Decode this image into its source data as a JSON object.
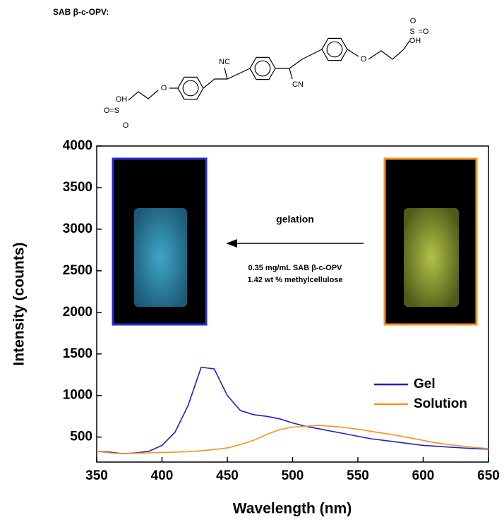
{
  "structure": {
    "label": "SAB β-c-OPV:",
    "atoms": [
      "NC",
      "CN",
      "O",
      "O",
      "OH",
      "O=S",
      "O",
      "O",
      "=O",
      "S",
      "OH"
    ]
  },
  "chart_data": {
    "type": "line",
    "annotations": [
      "gelation",
      "0.35 mg/mL SAB β-c-OPV",
      "1.42 wt % methylcellulose"
    ],
    "x_label": "Wavelength (nm)",
    "y_label": "Intensity (counts)",
    "x": [
      350,
      360,
      370,
      380,
      390,
      400,
      410,
      420,
      430,
      440,
      450,
      460,
      470,
      480,
      490,
      500,
      510,
      520,
      530,
      540,
      550,
      560,
      570,
      580,
      590,
      600,
      610,
      620,
      630,
      640,
      650
    ],
    "series": [
      {
        "name": "Gel",
        "color": "#2020c8",
        "values": [
          330,
          320,
          300,
          310,
          330,
          400,
          560,
          880,
          1340,
          1320,
          1000,
          820,
          770,
          750,
          720,
          670,
          630,
          600,
          570,
          540,
          510,
          480,
          460,
          440,
          420,
          400,
          390,
          380,
          370,
          360,
          355
        ]
      },
      {
        "name": "Solution",
        "color": "#f5931e",
        "values": [
          330,
          310,
          300,
          305,
          310,
          315,
          320,
          325,
          335,
          350,
          370,
          410,
          460,
          530,
          590,
          620,
          630,
          640,
          630,
          615,
          595,
          570,
          545,
          520,
          490,
          460,
          430,
          410,
          390,
          375,
          360
        ]
      }
    ],
    "xlim": [
      350,
      650
    ],
    "xticks": [
      350,
      400,
      450,
      500,
      550,
      600,
      650
    ],
    "ylim": [
      200,
      4000
    ],
    "yticks": [
      500,
      1000,
      1500,
      2000,
      2500,
      3000,
      3500,
      4000
    ],
    "legend": "right"
  }
}
